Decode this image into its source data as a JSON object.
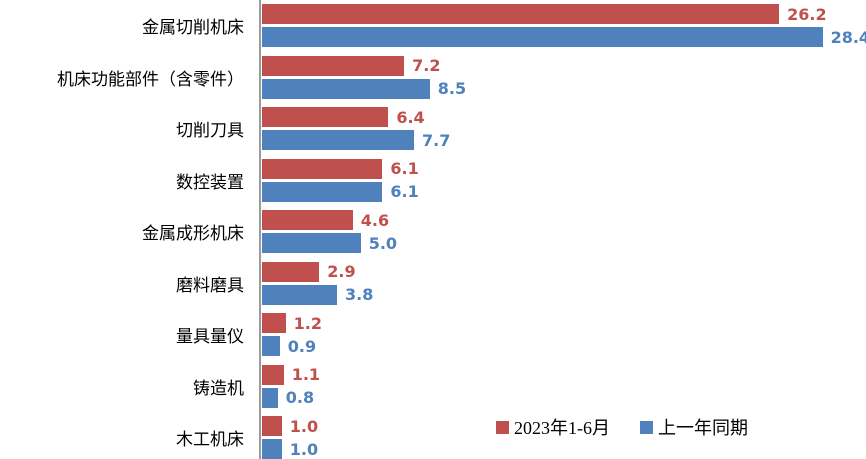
{
  "chart_data": {
    "type": "bar",
    "orientation": "horizontal",
    "title": "",
    "xlabel": "",
    "ylabel": "",
    "xlim": [
      0,
      30.6
    ],
    "grid": false,
    "legend_position": "bottom-right",
    "axis_color": "#9b9b9b",
    "categories": [
      "金属切削机床",
      "机床功能部件（含零件）",
      "切削刀具",
      "数控装置",
      "金属成形机床",
      "磨料磨具",
      "量具量仪",
      "铸造机",
      "木工机床"
    ],
    "series": [
      {
        "name": "2023年1-6月",
        "color": "#c0504d",
        "values": [
          26.2,
          7.2,
          6.4,
          6.1,
          4.6,
          2.9,
          1.2,
          1.1,
          1.0
        ]
      },
      {
        "name": "上一年同期",
        "color": "#4f81bd",
        "values": [
          28.4,
          8.5,
          7.7,
          6.1,
          5.0,
          3.8,
          0.9,
          0.8,
          1.0
        ]
      }
    ]
  }
}
